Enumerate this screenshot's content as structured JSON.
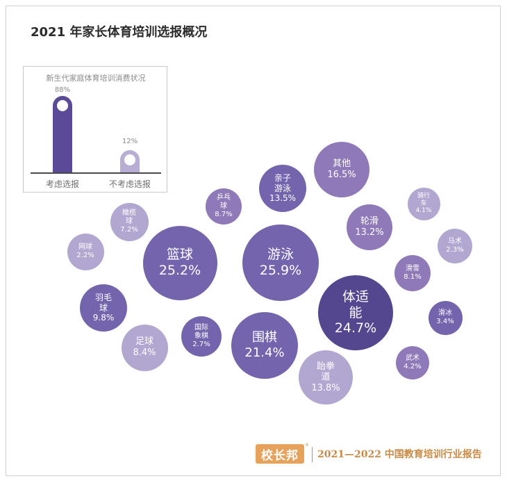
{
  "title": "2021 年家长体育培训选报概况",
  "inset": {
    "title": "新生代家庭体育培训消费状况",
    "bars": [
      {
        "label": "考虑选报",
        "value": 88,
        "display": "88%"
      },
      {
        "label": "不考虑选报",
        "value": 12,
        "display": "12%"
      }
    ]
  },
  "chart_data": {
    "type": "bubble",
    "title": "2021 年家长体育培训选报概况",
    "unit": "%",
    "items": [
      {
        "name": "游泳",
        "value": 25.9,
        "display": "25.9%"
      },
      {
        "name": "篮球",
        "value": 25.2,
        "display": "25.2%"
      },
      {
        "name": "体适能",
        "value": 24.7,
        "display": "24.7%"
      },
      {
        "name": "围棋",
        "value": 21.4,
        "display": "21.4%"
      },
      {
        "name": "其他",
        "value": 16.5,
        "display": "16.5%"
      },
      {
        "name": "跆拳道",
        "value": 13.8,
        "display": "13.8%"
      },
      {
        "name": "亲子游泳",
        "value": 13.5,
        "display": "13.5%"
      },
      {
        "name": "轮滑",
        "value": 13.2,
        "display": "13.2%"
      },
      {
        "name": "羽毛球",
        "value": 9.8,
        "display": "9.8%"
      },
      {
        "name": "乒乓球",
        "value": 8.7,
        "display": "8.7%"
      },
      {
        "name": "足球",
        "value": 8.4,
        "display": "8.4%"
      },
      {
        "name": "滑雪",
        "value": 8.1,
        "display": "8.1%"
      },
      {
        "name": "橄榄球",
        "value": 7.2,
        "display": "7.2%"
      },
      {
        "name": "武术",
        "value": 4.2,
        "display": "4.2%"
      },
      {
        "name": "骑行车",
        "value": 4.1,
        "display": "4.1%"
      },
      {
        "name": "滑冰",
        "value": 3.4,
        "display": "3.4%"
      },
      {
        "name": "国际象棋",
        "value": 2.7,
        "display": "2.7%"
      },
      {
        "name": "马术",
        "value": 2.3,
        "display": "2.3%"
      },
      {
        "name": "网球",
        "value": 2.2,
        "display": "2.2%"
      }
    ]
  },
  "colors": {
    "bar_consider": "#5b4a97",
    "bar_not": "#b8aed5",
    "bubble_darkest": "#54468f",
    "bubble_dark": "#7464ad",
    "bubble_mid": "#8f79b8",
    "bubble_light": "#b2a7d0",
    "footer_orange": "#e6a15a"
  },
  "footer": {
    "logo": "校长邦",
    "report": "2021—2022 中国教育培训行业报告"
  }
}
